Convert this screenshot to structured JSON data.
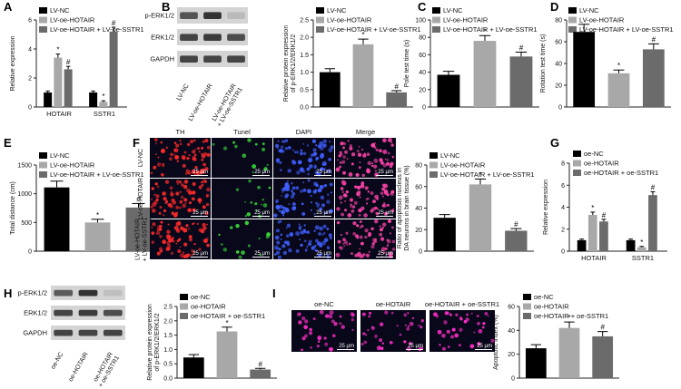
{
  "figure": {
    "axis_color": "#222222",
    "gel_colors": {
      "background": "#d4d4d4",
      "band": "#2a2a2a"
    },
    "micro_colors": {
      "TH": "#ff2a2a",
      "Tunel": "#37d437",
      "DAPI": "#3f5fff",
      "Merge": "#ff44aa",
      "I": "#ff2ec8"
    },
    "panel_F": {
      "channels": [
        "TH",
        "Tunel",
        "DAPI",
        "Merge"
      ],
      "rows": [
        "LV-NC",
        "LV-oe-HOTAIR",
        "LV-oe-HOTAIR\n+ LV-oe-SSTR1"
      ],
      "scale": "25 μm"
    },
    "panel_I": {
      "images": [
        "oe-NC",
        "oe-HOTAIR",
        "oe-HOTAIR + oe-SSTR1"
      ],
      "scale": "25 μm"
    },
    "panel_B_gel": {
      "bands": [
        "p-ERK1/2",
        "ERK1/2",
        "GAPDH"
      ],
      "lanes": [
        "LV-NC",
        "LV-oe-HOTAIR",
        "LV-oe-HOTAIR\n+ LV-oe-SSTR1"
      ]
    },
    "panel_H_gel": {
      "bands": [
        "p-ERK1/2",
        "ERK1/2",
        "GAPDH"
      ],
      "lanes": [
        "oe-NC",
        "oe-HOTAIR",
        "oe-HOTAIR\n+ oe-SSTR1"
      ]
    }
  },
  "chart_data": [
    {
      "panel": "A",
      "type": "bar",
      "categories": [
        "HOTAIR",
        "SSTR1"
      ],
      "series": [
        {
          "name": "LV-NC",
          "values": [
            1.0,
            1.0
          ],
          "err": [
            0.1,
            0.1
          ],
          "color": "#000000",
          "mark": [
            "",
            ""
          ]
        },
        {
          "name": "LV-oe-HOTAIR",
          "values": [
            3.4,
            0.35
          ],
          "err": [
            0.25,
            0.08
          ],
          "color": "#a8a8a8",
          "mark": [
            "*",
            "*"
          ]
        },
        {
          "name": "LV-oe-HOTAIR + LV-oe-SSTR1",
          "values": [
            2.6,
            5.2
          ],
          "err": [
            0.2,
            0.3
          ],
          "color": "#6b6b6b",
          "mark": [
            "#",
            "#"
          ]
        }
      ],
      "ylabel": "Relative expression",
      "ylim": [
        0,
        6
      ],
      "yticks": [
        0,
        2,
        4,
        6
      ]
    },
    {
      "panel": "B",
      "type": "bar",
      "categories": [
        "LV-NC",
        "LV-oe-HOTAIR",
        "LV-oe-HOTAIR + LV-oe-SSTR1"
      ],
      "values": [
        1.0,
        1.8,
        0.42
      ],
      "err": [
        0.1,
        0.15,
        0.05
      ],
      "colors": [
        "#000000",
        "#a8a8a8",
        "#6b6b6b"
      ],
      "marks": [
        "",
        "*",
        "#"
      ],
      "ylabel": "Relative protein expression\nof p-ERK1/2/ERK1/2",
      "ylim": [
        0,
        2.5
      ],
      "yticks": [
        0.0,
        0.5,
        1.0,
        1.5,
        2.0,
        2.5
      ]
    },
    {
      "panel": "C",
      "type": "bar",
      "categories": [
        "LV-NC",
        "LV-oe-HOTAIR",
        "LV-oe-HOTAIR + LV-oe-SSTR1"
      ],
      "values": [
        37,
        76,
        58
      ],
      "err": [
        4,
        6,
        5
      ],
      "colors": [
        "#000000",
        "#a8a8a8",
        "#6b6b6b"
      ],
      "marks": [
        "",
        "*",
        "#"
      ],
      "ylabel": "Pole test time (s)",
      "ylim": [
        0,
        100
      ],
      "yticks": [
        0,
        20,
        40,
        60,
        80,
        100
      ]
    },
    {
      "panel": "D",
      "type": "bar",
      "categories": [
        "LV-NC",
        "LV-oe-HOTAIR",
        "LV-oe-HOTAIR + LV-oe-SSTR1"
      ],
      "values": [
        69,
        31,
        53
      ],
      "err": [
        7,
        3,
        5
      ],
      "colors": [
        "#000000",
        "#a8a8a8",
        "#6b6b6b"
      ],
      "marks": [
        "",
        "*",
        "#"
      ],
      "ylabel": "Rotation test time (s)",
      "ylim": [
        0,
        80
      ],
      "yticks": [
        0,
        20,
        40,
        60,
        80
      ]
    },
    {
      "panel": "E",
      "type": "bar",
      "categories": [
        "LV-NC",
        "LV-oe-HOTAIR",
        "LV-oe-HOTAIR + LV-oe-SSTR1"
      ],
      "values": [
        1110,
        500,
        760
      ],
      "err": [
        110,
        55,
        70
      ],
      "colors": [
        "#000000",
        "#a8a8a8",
        "#6b6b6b"
      ],
      "marks": [
        "",
        "*",
        "#"
      ],
      "ylabel": "Total distance (cm)",
      "ylim": [
        0,
        1500
      ],
      "yticks": [
        0,
        500,
        1000,
        1500
      ]
    },
    {
      "panel": "F",
      "type": "bar",
      "categories": [
        "LV-NC",
        "LV-oe-HOTAIR",
        "LV-oe-HOTAIR + LV-oe-SSTR1"
      ],
      "values": [
        31,
        62,
        19
      ],
      "err": [
        3,
        5,
        2
      ],
      "colors": [
        "#000000",
        "#a8a8a8",
        "#6b6b6b"
      ],
      "marks": [
        "",
        "*",
        "#"
      ],
      "ylabel": "Ratio of apoptosis nucleus in\nDA neurons in brain tissue (%)",
      "ylim": [
        0,
        80
      ],
      "yticks": [
        0,
        20,
        40,
        60,
        80
      ]
    },
    {
      "panel": "G",
      "type": "bar",
      "categories": [
        "HOTAIR",
        "SSTR1"
      ],
      "series": [
        {
          "name": "oe-NC",
          "values": [
            1.0,
            1.0
          ],
          "err": [
            0.1,
            0.1
          ],
          "color": "#000000",
          "mark": [
            "",
            ""
          ]
        },
        {
          "name": "oe-HOTAIR",
          "values": [
            3.3,
            0.35
          ],
          "err": [
            0.25,
            0.08
          ],
          "color": "#a8a8a8",
          "mark": [
            "*",
            "*"
          ]
        },
        {
          "name": "oe-HOTAIR + oe-SSTR1",
          "values": [
            2.7,
            5.1
          ],
          "err": [
            0.2,
            0.3
          ],
          "color": "#6b6b6b",
          "mark": [
            "#",
            "#"
          ]
        }
      ],
      "ylabel": "Relative expression",
      "ylim": [
        0,
        8
      ],
      "yticks": [
        0,
        2,
        4,
        6,
        8
      ]
    },
    {
      "panel": "H",
      "type": "bar",
      "categories": [
        "oe-NC",
        "oe-HOTAIR",
        "oe-HOTAIR + oe-SSTR1"
      ],
      "values": [
        0.72,
        1.63,
        0.3
      ],
      "err": [
        0.1,
        0.15,
        0.04
      ],
      "colors": [
        "#000000",
        "#a8a8a8",
        "#6b6b6b"
      ],
      "marks": [
        "",
        "*",
        "#"
      ],
      "ylabel": "Relative protein expression\nof p-ERK1/2/ERK1/2",
      "ylim": [
        0,
        2.5
      ],
      "yticks": [
        0.0,
        0.5,
        1.0,
        1.5,
        2.0,
        2.5
      ]
    },
    {
      "panel": "I",
      "type": "bar",
      "categories": [
        "oe-NC",
        "oe-HOTAIR",
        "oe-HOTAIR + oe-SSTR1"
      ],
      "values": [
        25,
        42,
        35
      ],
      "err": [
        3,
        5,
        4
      ],
      "colors": [
        "#000000",
        "#a8a8a8",
        "#6b6b6b"
      ],
      "marks": [
        "",
        "*",
        "#"
      ],
      "ylabel": "Apoptotic index (%)",
      "ylim": [
        0,
        60
      ],
      "yticks": [
        0,
        20,
        40,
        60
      ]
    }
  ]
}
